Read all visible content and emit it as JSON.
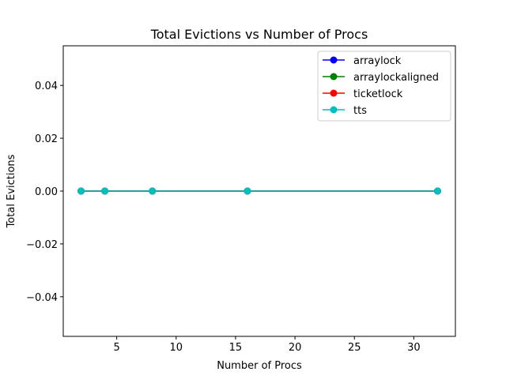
{
  "chart_data": {
    "type": "line",
    "title": "Total Evictions vs Number of Procs",
    "xlabel": "Number of Procs",
    "ylabel": "Total Evictions",
    "xlim": [
      0.5,
      33.5
    ],
    "ylim": [
      -0.055,
      0.055
    ],
    "xticks": [
      5,
      10,
      15,
      20,
      25,
      30
    ],
    "xtick_labels": [
      "5",
      "10",
      "15",
      "20",
      "25",
      "30"
    ],
    "yticks": [
      -0.04,
      -0.02,
      0.0,
      0.02,
      0.04
    ],
    "ytick_labels": [
      "−0.04",
      "−0.02",
      "0.00",
      "0.02",
      "0.04"
    ],
    "grid": false,
    "legend_position": "top-right",
    "x": [
      2,
      4,
      8,
      16,
      32
    ],
    "series": [
      {
        "name": "arraylock",
        "values": [
          0,
          0,
          0,
          0,
          0
        ],
        "color": "#0000ff"
      },
      {
        "name": "arraylockaligned",
        "values": [
          0,
          0,
          0,
          0,
          0
        ],
        "color": "#008000"
      },
      {
        "name": "ticketlock",
        "values": [
          0,
          0,
          0,
          0,
          0
        ],
        "color": "#ff0000"
      },
      {
        "name": "tts",
        "values": [
          0,
          0,
          0,
          0,
          0
        ],
        "color": "#00bfbf"
      }
    ]
  }
}
